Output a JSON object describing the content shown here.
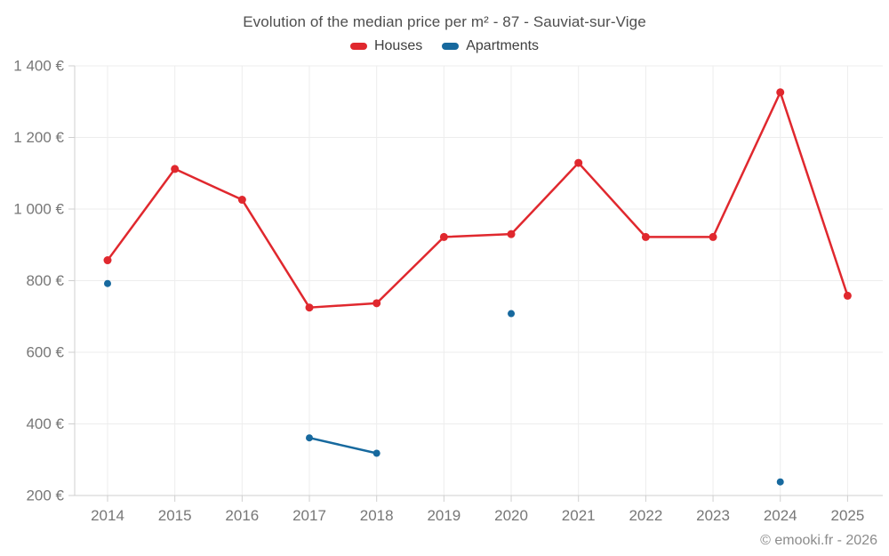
{
  "title": "Evolution of the median price per m² - 87 - Sauviat-sur-Vige",
  "copyright": "© emooki.fr - 2026",
  "chart_data": {
    "type": "line",
    "title": "Evolution of the median price per m² - 87 - Sauviat-sur-Vige",
    "x": [
      2014,
      2015,
      2016,
      2017,
      2018,
      2019,
      2020,
      2021,
      2022,
      2023,
      2024,
      2025
    ],
    "series": [
      {
        "name": "Houses",
        "color": "#e0282e",
        "values": [
          857,
          1112,
          1026,
          725,
          737,
          922,
          930,
          1129,
          922,
          922,
          1326,
          758
        ]
      },
      {
        "name": "Apartments",
        "color": "#17699e",
        "values": [
          792,
          null,
          null,
          361,
          318,
          null,
          708,
          null,
          null,
          null,
          238,
          null
        ]
      }
    ],
    "y_unit": "€",
    "yticks": [
      200,
      400,
      600,
      800,
      1000,
      1200,
      1400
    ],
    "ylim": [
      200,
      1400
    ],
    "grid": true,
    "legend_position": "top",
    "y_tick_labels": [
      "200 €",
      "400 €",
      "600 €",
      "800 €",
      "1 000 €",
      "1 200 €",
      "1 400 €"
    ]
  }
}
